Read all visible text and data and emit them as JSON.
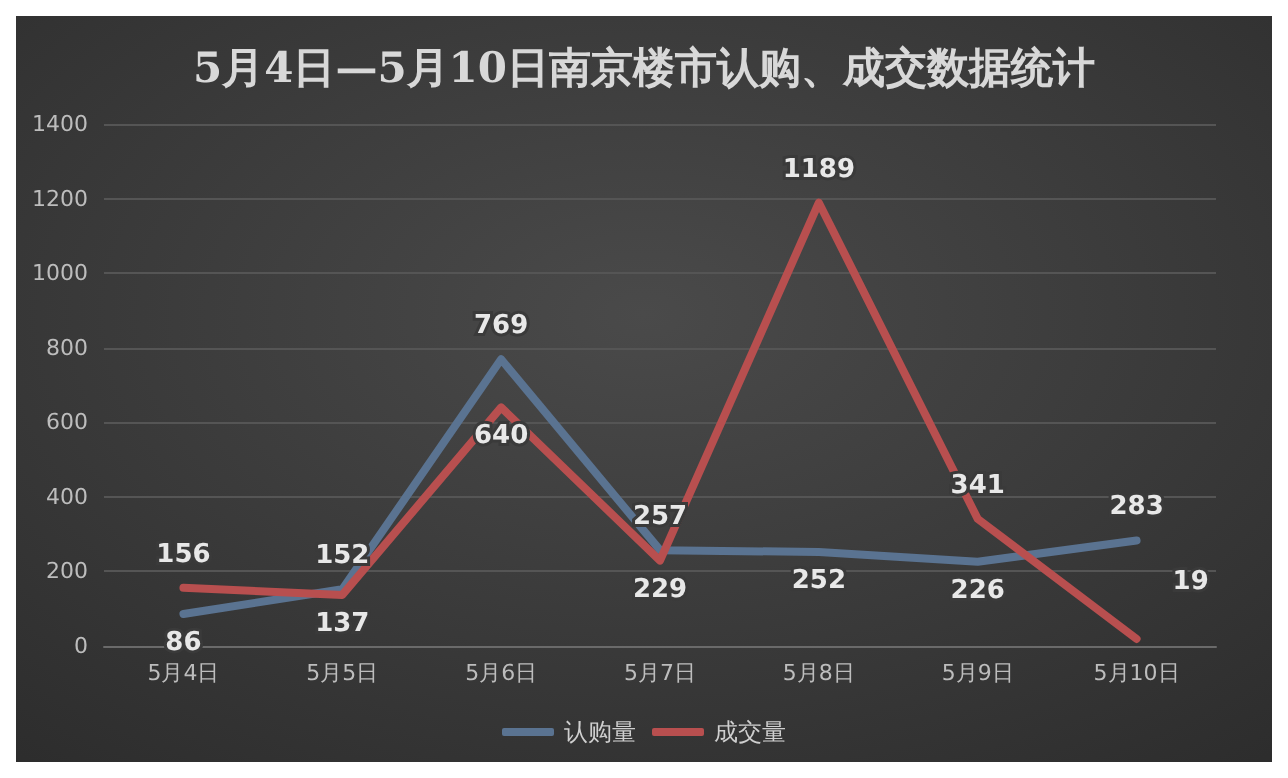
{
  "chart_data": {
    "type": "line",
    "title": "5月4日—5月10日南京楼市认购、成交数据统计",
    "categories": [
      "5月4日",
      "5月5日",
      "5月6日",
      "5月7日",
      "5月8日",
      "5月9日",
      "5月10日"
    ],
    "series": [
      {
        "name": "认购量",
        "color": "#5a7391",
        "values": [
          86,
          152,
          769,
          257,
          252,
          226,
          283
        ]
      },
      {
        "name": "成交量",
        "color": "#b84f4f",
        "values": [
          156,
          137,
          640,
          229,
          1189,
          341,
          19
        ]
      }
    ],
    "ylim": [
      0,
      1400
    ],
    "yticks": [
      0,
      200,
      400,
      600,
      800,
      1000,
      1200,
      1400
    ],
    "grid": "y",
    "legend": "bottom",
    "data_labels": true,
    "marker": "none",
    "line_style": "solid"
  }
}
